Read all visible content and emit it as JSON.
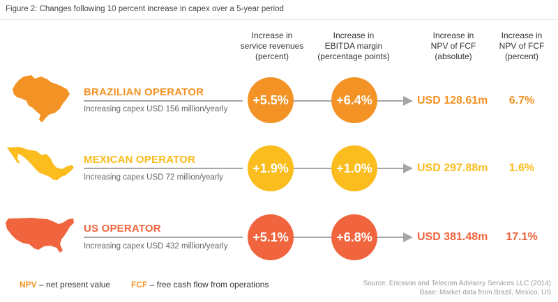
{
  "figure": {
    "title": "Figure 2: Changes following 10 percent increase in capex over a 5-year period"
  },
  "columns": [
    {
      "lines": [
        "Increase in",
        "service revenues",
        "(percent)"
      ]
    },
    {
      "lines": [
        "Increase in",
        "EBITDA margin",
        "(percentage points)"
      ]
    },
    {
      "lines": [
        "Increase in",
        "NPV of FCF",
        "(absolute)"
      ]
    },
    {
      "lines": [
        "Increase in",
        "NPV of FCF",
        "(percent)"
      ]
    }
  ],
  "operators": [
    {
      "name": "BRAZILIAN OPERATOR",
      "subtitle": "Increasing capex USD 156 million/yearly",
      "service_revenue": "+5.5%",
      "ebitda_margin": "+6.4%",
      "npv_absolute": "USD 128.61m",
      "npv_percent": "6.7%",
      "color": "#f39325",
      "map_icon": "brazil-map-icon"
    },
    {
      "name": "MEXICAN OPERATOR",
      "subtitle": "Increasing capex USD 72 million/yearly",
      "service_revenue": "+1.9%",
      "ebitda_margin": "+1.0%",
      "npv_absolute": "USD 297.88m",
      "npv_percent": "1.6%",
      "color": "#fbbc1d",
      "map_icon": "mexico-map-icon"
    },
    {
      "name": "US OPERATOR",
      "subtitle": "Increasing capex USD 432 million/yearly",
      "service_revenue": "+5.1%",
      "ebitda_margin": "+6.8%",
      "npv_absolute": "USD 381.48m",
      "npv_percent": "17.1%",
      "color": "#f0653d",
      "map_icon": "usa-map-icon"
    }
  ],
  "legend": [
    {
      "term": "NPV",
      "definition": " – net present value",
      "color": "#f39325"
    },
    {
      "term": "FCF",
      "definition": " – free cash flow from operations",
      "color": "#f39325"
    }
  ],
  "source": {
    "line1": "Source: Ericsson and Telecom Advisory Services LLC (2014)",
    "line2": "Base: Market data from Brazil, Mexico, US"
  }
}
